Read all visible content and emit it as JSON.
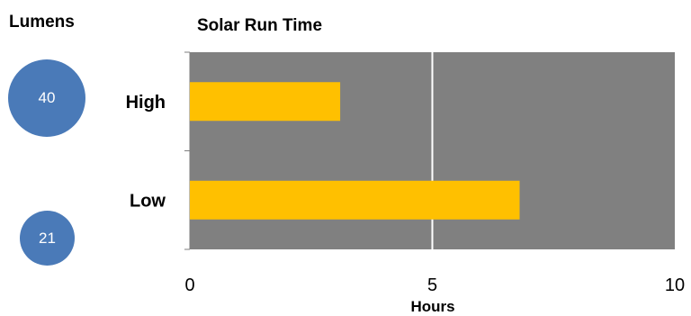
{
  "lumens": {
    "title": "Lumens",
    "values": [
      "40",
      "21"
    ],
    "bubble_color": "#4a7ab8"
  },
  "chart_data": {
    "type": "bar",
    "orientation": "horizontal",
    "title": "Solar Run Time",
    "xlabel": "Hours",
    "ylabel": "",
    "categories": [
      "High",
      "Low"
    ],
    "values": [
      3.1,
      6.8
    ],
    "xlim": [
      0,
      10
    ],
    "xticks": [
      "0",
      "5",
      "10"
    ],
    "grid": true,
    "legend": "none",
    "bar_color": "#ffc000",
    "plot_background": "#808080",
    "grid_color": "#ffffff"
  }
}
